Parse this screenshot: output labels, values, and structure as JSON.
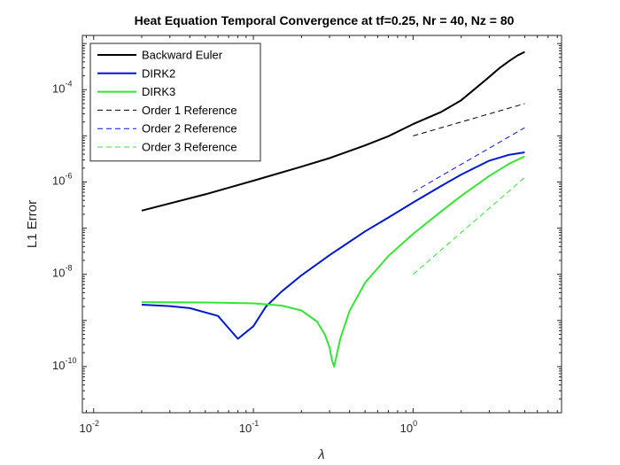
{
  "chart_data": {
    "type": "line",
    "title": "Heat Equation Temporal Convergence at tf=0.25, Nr = 40, Nz = 80",
    "xlabel": "λ",
    "ylabel": "L1 Error",
    "xscale": "log",
    "yscale": "log",
    "xlim": [
      0.0085,
      8.5
    ],
    "ylim": [
      1e-11,
      0.0015
    ],
    "xticks": [
      {
        "value": 0.01,
        "base": "10",
        "exp": "-2"
      },
      {
        "value": 0.1,
        "base": "10",
        "exp": "-1"
      },
      {
        "value": 1,
        "base": "10",
        "exp": "0"
      }
    ],
    "yticks": [
      {
        "value": 1e-10,
        "base": "10",
        "exp": "-10"
      },
      {
        "value": 1e-08,
        "base": "10",
        "exp": "-8"
      },
      {
        "value": 1e-06,
        "base": "10",
        "exp": "-6"
      },
      {
        "value": 0.0001,
        "base": "10",
        "exp": "-4"
      }
    ],
    "grid": false,
    "legend_position": "top-left",
    "series": [
      {
        "name": "Backward Euler",
        "color": "#000000",
        "style": "solid",
        "x": [
          0.02,
          0.05,
          0.1,
          0.2,
          0.3,
          0.5,
          0.7,
          1.0,
          1.5,
          2.0,
          2.5,
          3.0,
          3.5,
          4.0,
          4.5,
          5.0
        ],
        "y": [
          2.4e-07,
          5.4e-07,
          1.07e-06,
          2.15e-06,
          3.3e-06,
          6.2e-06,
          9.8e-06,
          1.8e-05,
          3.3e-05,
          5.9e-05,
          0.000112,
          0.00019,
          0.0003,
          0.00042,
          0.00055,
          0.00066
        ]
      },
      {
        "name": "DIRK2",
        "color": "#0019cc",
        "style": "solid",
        "x": [
          0.02,
          0.03,
          0.04,
          0.06,
          0.08,
          0.1,
          0.12,
          0.15,
          0.2,
          0.3,
          0.5,
          0.7,
          1.0,
          1.5,
          2.0,
          3.0,
          4.0,
          5.0
        ],
        "y": [
          2.2e-09,
          2.05e-09,
          1.85e-09,
          1.25e-09,
          4e-10,
          7.5e-10,
          2e-09,
          4.2e-09,
          9.5e-09,
          2.6e-08,
          8.5e-08,
          1.7e-07,
          3.6e-07,
          8.2e-07,
          1.45e-06,
          2.9e-06,
          3.9e-06,
          4.4e-06
        ]
      },
      {
        "name": "DIRK3",
        "color": "#33e633",
        "style": "solid",
        "x": [
          0.02,
          0.05,
          0.1,
          0.15,
          0.2,
          0.25,
          0.28,
          0.3,
          0.31,
          0.32,
          0.33,
          0.35,
          0.4,
          0.5,
          0.7,
          1.0,
          1.5,
          2.0,
          3.0,
          4.0,
          5.0
        ],
        "y": [
          2.5e-09,
          2.45e-09,
          2.35e-09,
          2.1e-09,
          1.65e-09,
          9.5e-10,
          5e-10,
          2.6e-10,
          1.4e-10,
          1e-10,
          1.6e-10,
          4e-10,
          1.6e-09,
          6.5e-09,
          2.5e-08,
          7.5e-08,
          2.3e-07,
          5e-07,
          1.35e-06,
          2.5e-06,
          3.6e-06
        ]
      },
      {
        "name": "Order 1 Reference",
        "color": "#000000",
        "style": "dashed",
        "x": [
          1,
          5
        ],
        "y": [
          1e-05,
          5e-05
        ]
      },
      {
        "name": "Order 2 Reference",
        "color": "#0019cc",
        "style": "dashed",
        "x": [
          1,
          5
        ],
        "y": [
          6e-07,
          1.5e-05
        ]
      },
      {
        "name": "Order 3 Reference",
        "color": "#33e633",
        "style": "dashed",
        "x": [
          1,
          5
        ],
        "y": [
          1e-08,
          1.25e-06
        ]
      }
    ]
  }
}
